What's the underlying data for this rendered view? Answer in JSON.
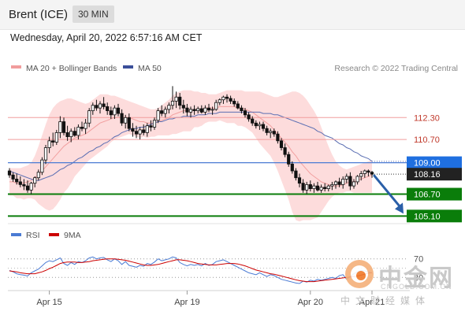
{
  "header": {
    "instrument": "Brent (ICE)",
    "timeframe": "30 MIN"
  },
  "datetime": "Wednesday, April 20, 2022 6:57:16 AM CET",
  "legend": {
    "ma20_bb": "MA 20 + Bollinger Bands",
    "ma50": "MA 50",
    "credit": "Research © 2022 Trading Central"
  },
  "rsi_legend": {
    "rsi": "RSI",
    "ma9": "9MA"
  },
  "colors": {
    "up_candle": "#ffffff",
    "down_candle": "#111111",
    "bollinger_fill": "#fdd6d6",
    "ma20": "#f2a0a0",
    "ma50": "#5b6fb3",
    "support": "#0a7d0a",
    "resistance": "#f19d9d",
    "pivot": "#4a7bd4",
    "arrow": "#2a5fa8",
    "rsi": "#4a7bd4",
    "rsi_ma": "#cc0000"
  },
  "icons": {
    "watermark": "zhongjinwang-logo"
  },
  "watermark": {
    "brand": "中金网",
    "url": "CNGOLD.COM.CN",
    "tagline": "中文财经媒体"
  },
  "chart_data": {
    "type": "candlestick",
    "x_ticks": [
      "Apr 15",
      "Apr 19",
      "Apr 20",
      "Apr 21"
    ],
    "y_range": [
      104.6,
      115.6
    ],
    "levels": [
      {
        "label": "112.30",
        "value": 112.3,
        "kind": "resistance"
      },
      {
        "label": "110.70",
        "value": 110.7,
        "kind": "resistance"
      },
      {
        "label": "109.00",
        "value": 109.0,
        "kind": "pivot"
      },
      {
        "label": "106.70",
        "value": 106.7,
        "kind": "support"
      },
      {
        "label": "105.10",
        "value": 105.1,
        "kind": "support"
      }
    ],
    "last_price": {
      "label": "108.16",
      "value": 108.16
    },
    "ohlc": [
      [
        108.4,
        108.6,
        107.9,
        108.1
      ],
      [
        108.1,
        108.3,
        107.6,
        107.8
      ],
      [
        107.8,
        108.2,
        107.4,
        107.6
      ],
      [
        107.6,
        108.0,
        107.2,
        107.4
      ],
      [
        107.4,
        107.8,
        107.0,
        107.3
      ],
      [
        107.3,
        107.7,
        106.8,
        107.0
      ],
      [
        107.0,
        107.6,
        106.7,
        107.5
      ],
      [
        107.5,
        108.0,
        107.2,
        107.9
      ],
      [
        107.9,
        108.5,
        107.7,
        108.3
      ],
      [
        108.3,
        109.4,
        108.1,
        109.2
      ],
      [
        109.2,
        110.3,
        108.9,
        110.1
      ],
      [
        110.1,
        110.9,
        109.7,
        110.6
      ],
      [
        110.6,
        111.2,
        110.2,
        110.5
      ],
      [
        110.5,
        111.4,
        110.3,
        111.2
      ],
      [
        111.2,
        112.4,
        110.8,
        112.0
      ],
      [
        112.0,
        112.3,
        111.0,
        111.2
      ],
      [
        111.2,
        111.7,
        110.6,
        110.9
      ],
      [
        110.9,
        111.5,
        110.5,
        111.3
      ],
      [
        111.3,
        111.6,
        110.9,
        111.0
      ],
      [
        111.0,
        111.8,
        110.7,
        111.6
      ],
      [
        111.6,
        112.0,
        111.3,
        111.5
      ],
      [
        111.5,
        112.2,
        111.1,
        111.9
      ],
      [
        111.9,
        113.0,
        111.6,
        112.8
      ],
      [
        112.8,
        113.4,
        112.5,
        113.2
      ],
      [
        113.2,
        113.6,
        112.8,
        113.0
      ],
      [
        113.0,
        113.5,
        112.6,
        113.3
      ],
      [
        113.3,
        113.8,
        112.9,
        113.1
      ],
      [
        113.1,
        113.4,
        112.5,
        112.8
      ],
      [
        112.8,
        113.1,
        112.2,
        112.5
      ],
      [
        112.5,
        113.2,
        112.2,
        113.0
      ],
      [
        113.0,
        113.3,
        112.4,
        112.6
      ],
      [
        112.6,
        112.9,
        111.7,
        111.9
      ],
      [
        111.9,
        112.5,
        111.5,
        112.3
      ],
      [
        112.3,
        112.6,
        111.3,
        111.5
      ],
      [
        111.5,
        111.9,
        110.9,
        111.3
      ],
      [
        111.3,
        111.7,
        110.8,
        111.1
      ],
      [
        111.1,
        111.6,
        110.7,
        111.4
      ],
      [
        111.4,
        111.8,
        111.0,
        111.2
      ],
      [
        111.2,
        111.9,
        110.9,
        111.7
      ],
      [
        111.7,
        112.1,
        111.3,
        111.6
      ],
      [
        111.6,
        112.3,
        111.4,
        112.1
      ],
      [
        112.1,
        113.0,
        111.9,
        112.8
      ],
      [
        112.8,
        113.2,
        112.4,
        112.6
      ],
      [
        112.6,
        113.1,
        112.3,
        112.9
      ],
      [
        112.9,
        113.4,
        112.6,
        113.2
      ],
      [
        113.2,
        114.6,
        112.9,
        113.5
      ],
      [
        113.5,
        114.2,
        113.0,
        113.8
      ],
      [
        113.8,
        114.1,
        112.9,
        113.2
      ],
      [
        113.2,
        113.6,
        112.6,
        113.0
      ],
      [
        113.0,
        113.3,
        112.4,
        112.7
      ],
      [
        112.7,
        113.1,
        112.3,
        112.9
      ],
      [
        112.9,
        113.2,
        112.5,
        112.8
      ],
      [
        112.8,
        113.1,
        112.6,
        112.95
      ],
      [
        112.95,
        113.2,
        112.6,
        112.7
      ],
      [
        112.7,
        113.2,
        112.5,
        113.0
      ],
      [
        113.0,
        113.3,
        112.7,
        112.85
      ],
      [
        112.85,
        113.1,
        112.5,
        112.9
      ],
      [
        112.9,
        113.6,
        112.8,
        113.4
      ],
      [
        113.4,
        113.7,
        113.2,
        113.6
      ],
      [
        113.6,
        113.9,
        113.3,
        113.8
      ],
      [
        113.8,
        114.0,
        113.4,
        113.7
      ],
      [
        113.7,
        113.9,
        113.3,
        113.5
      ],
      [
        113.5,
        113.7,
        113.1,
        113.3
      ],
      [
        113.3,
        113.5,
        112.9,
        113.0
      ],
      [
        113.0,
        113.2,
        112.6,
        112.8
      ],
      [
        112.8,
        113.0,
        112.3,
        112.5
      ],
      [
        112.5,
        112.7,
        112.0,
        112.2
      ],
      [
        112.2,
        112.4,
        111.7,
        111.9
      ],
      [
        111.9,
        112.1,
        111.5,
        111.7
      ],
      [
        111.7,
        112.0,
        111.4,
        111.8
      ],
      [
        111.8,
        112.0,
        111.3,
        111.5
      ],
      [
        111.5,
        111.7,
        111.0,
        111.2
      ],
      [
        111.2,
        111.5,
        110.8,
        111.3
      ],
      [
        111.3,
        111.5,
        110.9,
        111.1
      ],
      [
        111.1,
        111.3,
        110.4,
        110.6
      ],
      [
        110.6,
        110.8,
        109.9,
        110.1
      ],
      [
        110.1,
        110.4,
        109.4,
        109.6
      ],
      [
        109.6,
        109.8,
        108.7,
        108.9
      ],
      [
        108.9,
        109.1,
        108.2,
        108.4
      ],
      [
        108.4,
        108.6,
        107.7,
        107.9
      ],
      [
        107.9,
        108.2,
        107.2,
        107.5
      ],
      [
        107.5,
        107.8,
        106.8,
        107.0
      ],
      [
        107.0,
        107.6,
        106.7,
        107.4
      ],
      [
        107.4,
        107.7,
        106.9,
        107.1
      ],
      [
        107.1,
        107.5,
        106.8,
        107.3
      ],
      [
        107.3,
        107.6,
        106.9,
        107.0
      ],
      [
        107.0,
        107.4,
        106.8,
        107.2
      ],
      [
        107.2,
        107.5,
        106.9,
        107.1
      ],
      [
        107.1,
        107.4,
        106.9,
        107.3
      ],
      [
        107.3,
        107.6,
        107.0,
        107.4
      ],
      [
        107.4,
        107.7,
        107.1,
        107.6
      ],
      [
        107.6,
        107.9,
        107.2,
        107.4
      ],
      [
        107.4,
        108.0,
        107.1,
        107.8
      ],
      [
        107.8,
        108.2,
        107.5,
        108.0
      ],
      [
        108.0,
        108.3,
        107.0,
        107.3
      ],
      [
        107.3,
        107.8,
        107.1,
        107.6
      ],
      [
        107.6,
        108.1,
        107.4,
        108.0
      ],
      [
        108.0,
        108.4,
        107.7,
        108.2
      ],
      [
        108.2,
        108.5,
        107.9,
        108.4
      ],
      [
        108.4,
        108.5,
        108.0,
        108.3
      ],
      [
        108.3,
        108.4,
        107.9,
        108.16
      ]
    ],
    "ma20": [
      107.6,
      107.6,
      107.5,
      107.5,
      107.5,
      107.6,
      107.7,
      107.9,
      108.1,
      108.4,
      108.7,
      109.0,
      109.3,
      109.6,
      109.9,
      110.2,
      110.4,
      110.6,
      110.8,
      110.9,
      111.0,
      111.1,
      111.3,
      111.5,
      111.7,
      111.9,
      112.0,
      112.1,
      112.2,
      112.3,
      112.3,
      112.3,
      112.3,
      112.3,
      112.2,
      112.1,
      112.0,
      112.0,
      111.9,
      111.9,
      111.9,
      112.0,
      112.1,
      112.2,
      112.3,
      112.5,
      112.6,
      112.7,
      112.8,
      112.8,
      112.8,
      112.9,
      112.9,
      112.9,
      113.0,
      113.0,
      113.0,
      113.0,
      113.1,
      113.1,
      113.1,
      113.1,
      113.1,
      113.0,
      113.0,
      112.9,
      112.8,
      112.7,
      112.5,
      112.3,
      112.1,
      111.9,
      111.7,
      111.4,
      111.1,
      110.8,
      110.5,
      110.2,
      109.8,
      109.5,
      109.1,
      108.8,
      108.5,
      108.2,
      108.0,
      107.8,
      107.6,
      107.5,
      107.4,
      107.3,
      107.3,
      107.3,
      107.4,
      107.5,
      107.6,
      107.6,
      107.7,
      107.8,
      107.9,
      108.0,
      108.1
    ],
    "bb_upper": [
      108.6,
      108.6,
      108.6,
      108.6,
      108.7,
      108.8,
      109.0,
      109.5,
      110.2,
      111.0,
      111.8,
      112.5,
      113.0,
      113.3,
      113.5,
      113.6,
      113.7,
      113.7,
      113.6,
      113.5,
      113.4,
      113.3,
      113.4,
      113.6,
      113.8,
      114.0,
      114.0,
      114.0,
      113.9,
      113.9,
      113.8,
      113.7,
      113.6,
      113.5,
      113.4,
      113.3,
      113.2,
      113.1,
      113.0,
      112.9,
      112.9,
      113.0,
      113.2,
      113.4,
      113.6,
      113.9,
      114.1,
      114.2,
      114.3,
      114.3,
      114.3,
      114.2,
      114.2,
      114.1,
      114.1,
      114.0,
      114.0,
      114.0,
      114.1,
      114.2,
      114.3,
      114.3,
      114.3,
      114.3,
      114.3,
      114.2,
      114.2,
      114.2,
      114.2,
      114.2,
      114.1,
      114.0,
      113.9,
      113.8,
      113.8,
      113.9,
      114.0,
      114.1,
      114.2,
      114.2,
      114.1,
      113.9,
      113.6,
      113.2,
      112.8,
      112.3,
      111.6,
      110.9,
      110.2,
      109.6,
      109.1,
      108.8,
      108.6,
      108.5,
      108.6,
      108.7,
      108.8,
      108.9,
      109.0,
      109.1,
      109.2
    ],
    "bb_lower": [
      106.6,
      106.6,
      106.4,
      106.4,
      106.3,
      106.4,
      106.4,
      106.3,
      106.0,
      105.8,
      105.6,
      105.5,
      105.6,
      105.9,
      106.3,
      106.8,
      107.1,
      107.5,
      108.0,
      108.3,
      108.6,
      108.9,
      109.2,
      109.4,
      109.6,
      109.8,
      110.0,
      110.2,
      110.5,
      110.7,
      110.8,
      110.9,
      111.0,
      111.1,
      111.0,
      110.9,
      110.8,
      110.9,
      110.8,
      110.9,
      110.9,
      111.0,
      111.0,
      111.0,
      111.0,
      111.1,
      111.1,
      111.2,
      111.3,
      111.3,
      111.3,
      111.6,
      111.6,
      111.7,
      111.9,
      112.0,
      112.0,
      112.0,
      112.1,
      112.0,
      111.9,
      111.9,
      111.9,
      111.7,
      111.7,
      111.6,
      111.4,
      111.2,
      110.8,
      110.4,
      110.1,
      109.8,
      109.5,
      109.0,
      108.4,
      107.7,
      107.0,
      106.3,
      105.4,
      104.8,
      104.7,
      104.8,
      104.8,
      104.8,
      104.9,
      105.0,
      105.4,
      105.8,
      106.2,
      106.5,
      106.7,
      106.8,
      106.8,
      106.9,
      106.9,
      106.8,
      106.8,
      106.8,
      106.8,
      106.8,
      106.8
    ],
    "ma50": [
      108.4,
      108.3,
      108.2,
      108.1,
      108.0,
      107.9,
      107.8,
      107.7,
      107.7,
      107.8,
      107.9,
      108.0,
      108.1,
      108.3,
      108.5,
      108.6,
      108.8,
      108.9,
      109.1,
      109.3,
      109.4,
      109.6,
      109.8,
      109.9,
      110.1,
      110.2,
      110.4,
      110.5,
      110.7,
      110.9,
      111.0,
      111.2,
      111.3,
      111.4,
      111.5,
      111.5,
      111.6,
      111.6,
      111.7,
      111.8,
      111.9,
      112.0,
      112.0,
      112.1,
      112.2,
      112.2,
      112.3,
      112.3,
      112.4,
      112.4,
      112.4,
      112.4,
      112.5,
      112.5,
      112.5,
      112.6,
      112.6,
      112.6,
      112.7,
      112.7,
      112.7,
      112.7,
      112.7,
      112.7,
      112.7,
      112.7,
      112.7,
      112.7,
      112.7,
      112.7,
      112.6,
      112.6,
      112.6,
      112.5,
      112.5,
      112.4,
      112.3,
      112.2,
      112.1,
      112.0,
      111.9,
      111.8,
      111.7,
      111.6,
      111.5,
      111.3,
      111.2,
      111.0,
      110.9,
      110.8,
      110.6,
      110.4,
      110.3,
      110.1,
      110.0,
      109.8,
      109.7,
      109.5,
      109.4,
      109.3,
      109.1
    ],
    "forecast": {
      "from": 108.16,
      "to": 105.1
    },
    "rsi": {
      "levels": [
        {
          "label": "70",
          "value": 70
        },
        {
          "label": "30",
          "value": 30
        }
      ],
      "y_range": [
        0,
        100
      ],
      "rsi": [
        45,
        42,
        38,
        36,
        35,
        33,
        40,
        44,
        48,
        55,
        62,
        66,
        64,
        68,
        72,
        60,
        56,
        62,
        58,
        64,
        62,
        66,
        72,
        74,
        70,
        72,
        73,
        68,
        64,
        70,
        66,
        58,
        64,
        56,
        54,
        52,
        56,
        54,
        60,
        58,
        63,
        70,
        66,
        68,
        70,
        74,
        72,
        62,
        58,
        55,
        58,
        56,
        58,
        55,
        60,
        56,
        58,
        64,
        66,
        68,
        64,
        60,
        56,
        52,
        48,
        44,
        40,
        38,
        36,
        40,
        36,
        32,
        36,
        34,
        30,
        26,
        24,
        22,
        20,
        18,
        17,
        22,
        20,
        24,
        22,
        26,
        24,
        26,
        28,
        30,
        28,
        34,
        36,
        26,
        32,
        38,
        42,
        45,
        44,
        42,
        40
      ],
      "ma9": [
        44,
        43,
        42,
        40,
        39,
        38,
        38,
        38,
        40,
        42,
        45,
        49,
        52,
        56,
        60,
        62,
        63,
        63,
        63,
        62,
        62,
        63,
        64,
        66,
        67,
        68,
        69,
        70,
        70,
        70,
        69,
        68,
        67,
        65,
        63,
        61,
        59,
        57,
        56,
        56,
        57,
        58,
        60,
        62,
        64,
        66,
        68,
        68,
        67,
        66,
        64,
        62,
        60,
        59,
        58,
        57,
        57,
        57,
        58,
        59,
        60,
        60,
        60,
        59,
        57,
        55,
        52,
        49,
        46,
        44,
        42,
        40,
        38,
        37,
        35,
        33,
        31,
        29,
        27,
        25,
        23,
        22,
        21,
        21,
        21,
        22,
        23,
        24,
        25,
        26,
        27,
        28,
        29,
        30,
        31,
        32,
        33,
        35,
        37,
        39,
        40
      ]
    }
  }
}
